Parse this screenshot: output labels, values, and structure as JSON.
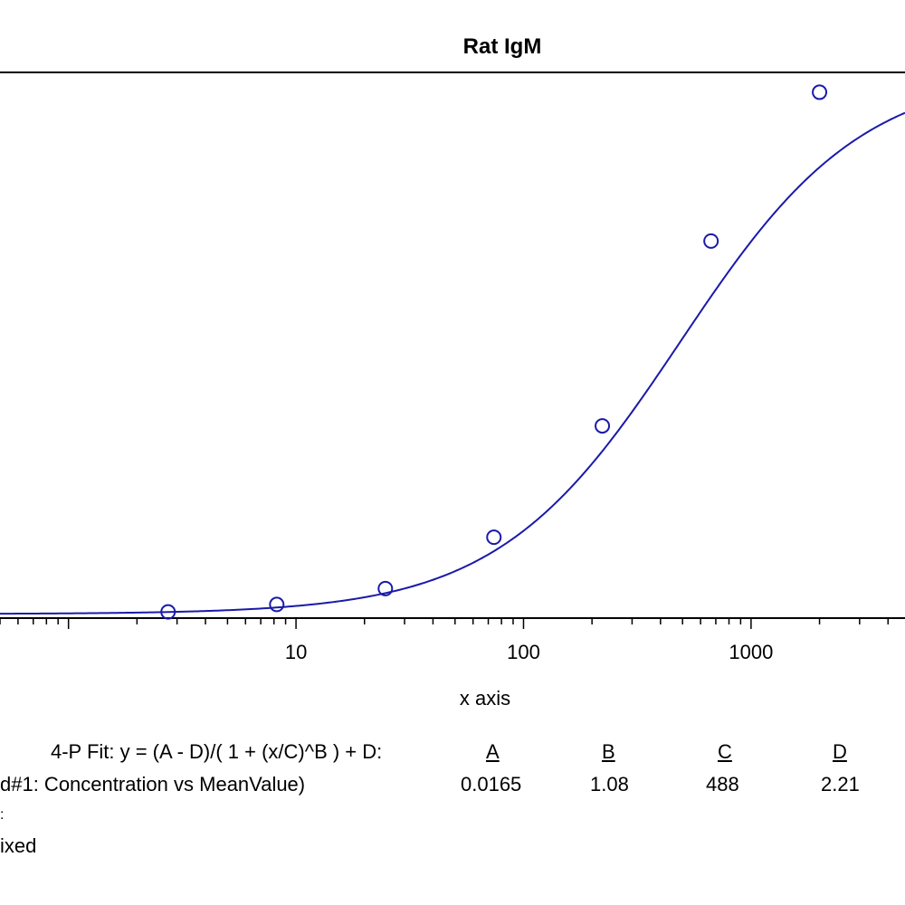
{
  "chart_data": {
    "type": "scatter",
    "title": "Rat IgM",
    "xlabel": "x axis",
    "ylabel": "",
    "x_scale": "log",
    "xlim": [
      0.5,
      4750
    ],
    "ylim": [
      0,
      2.2
    ],
    "x_tick_labels": [
      "10",
      "100",
      "1000"
    ],
    "series": [
      {
        "points": [
          {
            "x": 2.74,
            "y": 0.025
          },
          {
            "x": 8.23,
            "y": 0.055
          },
          {
            "x": 24.7,
            "y": 0.119
          },
          {
            "x": 74.1,
            "y": 0.326
          },
          {
            "x": 222,
            "y": 0.775
          },
          {
            "x": 667,
            "y": 1.52
          },
          {
            "x": 2000,
            "y": 2.12
          }
        ]
      }
    ],
    "fit": {
      "model": "4-P Fit",
      "A": 0.0165,
      "B": 1.08,
      "C": 488,
      "D": 2.21
    },
    "grid": false,
    "colors": {
      "series": "#1a1aaa",
      "axes": "#000000"
    }
  },
  "fit_panel": {
    "equation": "4-P Fit: y = (A - D)/( 1 + (x/C)^B ) + D:",
    "dataset_label": "d#1: Concentration vs MeanValue)",
    "headers": [
      "A",
      "B",
      "C",
      "D"
    ],
    "values": [
      "0.0165",
      "1.08",
      "488",
      "2.21"
    ],
    "note_1": ":",
    "note_2": "ixed"
  }
}
